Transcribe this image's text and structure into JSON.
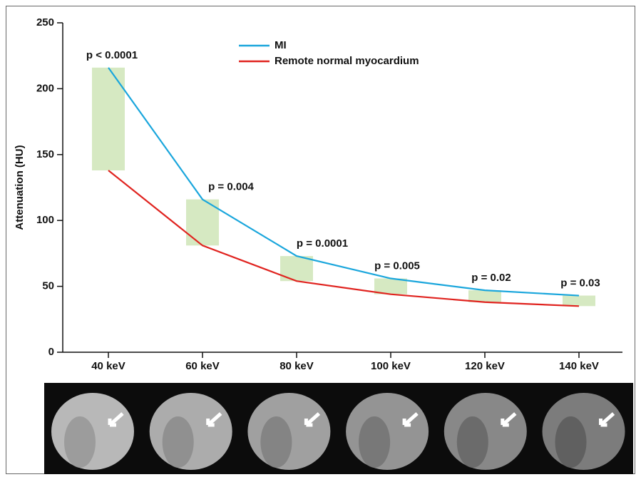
{
  "chart_data": {
    "type": "line",
    "y_label": "Attenuation (HU)",
    "categories": [
      "40 keV",
      "60 keV",
      "80 keV",
      "100 keV",
      "120 keV",
      "140 keV"
    ],
    "series": [
      {
        "name": "MI",
        "color": "#1aa6dc",
        "values": [
          216,
          116,
          73,
          56,
          47,
          43
        ]
      },
      {
        "name": "Remote normal myocardium",
        "color": "#e0231f",
        "values": [
          138,
          81,
          54,
          44,
          38,
          35
        ]
      }
    ],
    "range_color": "#d6e9c2",
    "annotations": [
      "p < 0.0001",
      "p = 0.004",
      "p = 0.0001",
      "p = 0.005",
      "p = 0.02",
      "p = 0.03"
    ],
    "ylim": [
      0,
      250
    ],
    "yticks": [
      0,
      50,
      100,
      150,
      200,
      250
    ]
  }
}
